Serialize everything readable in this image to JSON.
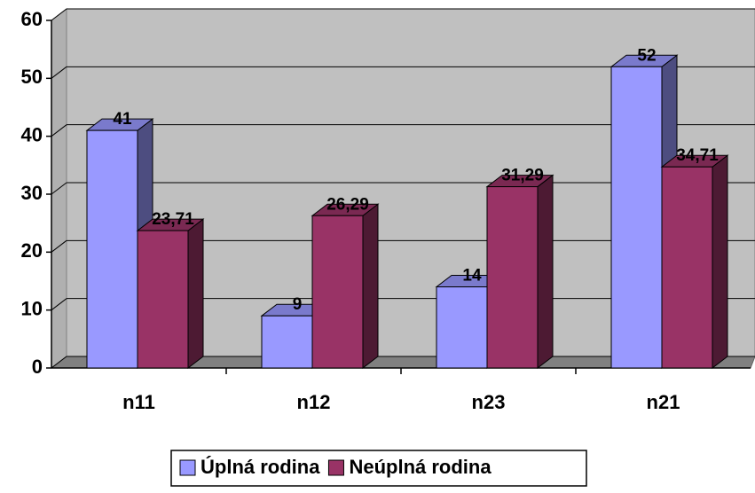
{
  "chart_data": {
    "type": "bar3d",
    "categories": [
      "n11",
      "n12",
      "n23",
      "n21"
    ],
    "series": [
      {
        "name": "Úplná rodina",
        "color": "#9999ff",
        "values": [
          41,
          9,
          14,
          52
        ]
      },
      {
        "name": "Neúplná rodina",
        "color": "#993366",
        "values": [
          23.71,
          26.29,
          31.29,
          34.71
        ],
        "value_labels": [
          "23,71",
          "26,29",
          "31,29",
          "34,71"
        ]
      }
    ],
    "ylim": [
      0,
      60
    ],
    "yticks": [
      0,
      10,
      20,
      30,
      40,
      50,
      60
    ],
    "grid": true,
    "legend": "bottom"
  }
}
